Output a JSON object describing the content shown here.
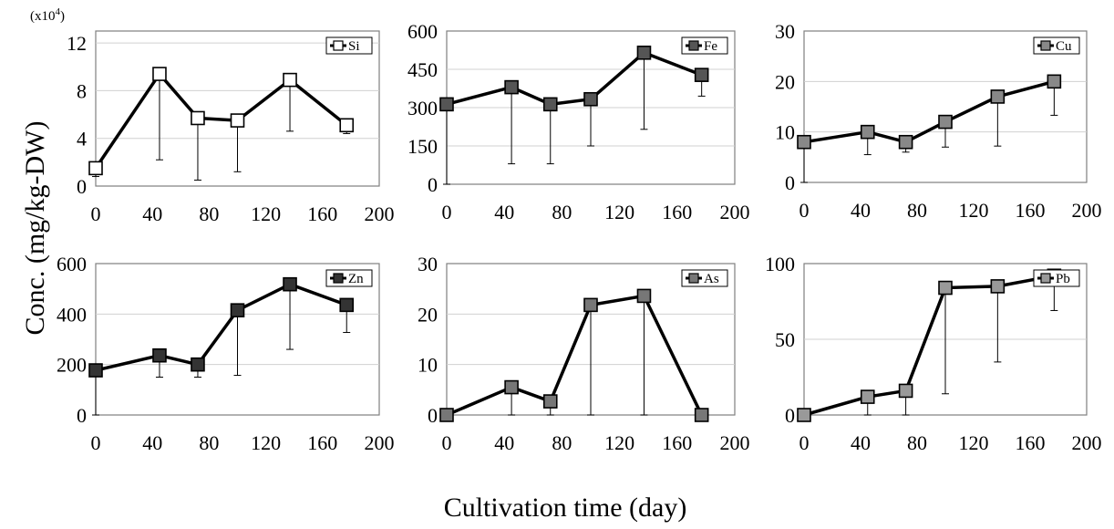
{
  "figure": {
    "ylabel": "Conc. (mg/kg-DW)",
    "xlabel": "Cultivation time (day)"
  },
  "chart_data": [
    {
      "type": "line",
      "legend": "Si",
      "marker_fill": "#ffffff",
      "y_multiplier_label": "(x10",
      "y_multiplier_exp": "4",
      "y_multiplier_close": ")",
      "x": [
        0,
        45,
        72,
        100,
        137,
        177
      ],
      "values": [
        1.5,
        9.4,
        5.7,
        5.5,
        8.9,
        5.1
      ],
      "err_low": [
        0.7,
        7.2,
        5.2,
        4.3,
        4.3,
        0.7
      ],
      "xlim": [
        0,
        200
      ],
      "xticks": [
        0,
        40,
        80,
        120,
        160,
        200
      ],
      "ylim": [
        0,
        13
      ],
      "yticks": [
        0,
        4,
        8,
        12
      ]
    },
    {
      "type": "line",
      "legend": "Fe",
      "marker_fill": "#555555",
      "x": [
        0,
        45,
        72,
        100,
        137,
        177
      ],
      "values": [
        313,
        380,
        313,
        333,
        515,
        428
      ],
      "err_low": [
        313,
        300,
        233,
        183,
        300,
        83
      ],
      "xlim": [
        0,
        200
      ],
      "xticks": [
        0,
        40,
        80,
        120,
        160,
        200
      ],
      "ylim": [
        0,
        600
      ],
      "yticks": [
        0,
        150,
        300,
        450,
        600
      ]
    },
    {
      "type": "line",
      "legend": "Cu",
      "marker_fill": "#888888",
      "x": [
        0,
        45,
        72,
        100,
        137,
        177
      ],
      "values": [
        8,
        10,
        8,
        12,
        17,
        20
      ],
      "err_low": [
        8,
        4.5,
        2,
        5,
        9.8,
        6.7
      ],
      "xlim": [
        0,
        200
      ],
      "xticks": [
        0,
        40,
        80,
        120,
        160,
        200
      ],
      "ylim": [
        0,
        30
      ],
      "yticks": [
        0,
        10,
        20,
        30
      ]
    },
    {
      "type": "line",
      "legend": "Zn",
      "marker_fill": "#333333",
      "x": [
        0,
        45,
        72,
        100,
        137,
        177
      ],
      "values": [
        177,
        236,
        200,
        415,
        518,
        436
      ],
      "err_low": [
        177,
        86,
        50,
        258,
        258,
        109
      ],
      "xlim": [
        0,
        200
      ],
      "xticks": [
        0,
        40,
        80,
        120,
        160,
        200
      ],
      "ylim": [
        0,
        600
      ],
      "yticks": [
        0,
        200,
        400,
        600
      ]
    },
    {
      "type": "line",
      "legend": "As",
      "marker_fill": "#777777",
      "x": [
        0,
        45,
        72,
        100,
        137,
        177
      ],
      "values": [
        0,
        5.5,
        2.7,
        21.8,
        23.6,
        0
      ],
      "err_low": [
        0,
        5.5,
        2.7,
        21.8,
        23.6,
        0
      ],
      "xlim": [
        0,
        200
      ],
      "xticks": [
        0,
        40,
        80,
        120,
        160,
        200
      ],
      "ylim": [
        0,
        30
      ],
      "yticks": [
        0,
        10,
        20,
        30
      ]
    },
    {
      "type": "line",
      "legend": "Pb",
      "marker_fill": "#999999",
      "x": [
        0,
        45,
        72,
        100,
        137,
        177
      ],
      "values": [
        0,
        12,
        16,
        84,
        85,
        92
      ],
      "err_low": [
        0,
        12,
        16,
        70,
        50,
        23
      ],
      "xlim": [
        0,
        200
      ],
      "xticks": [
        0,
        40,
        80,
        120,
        160,
        200
      ],
      "ylim": [
        0,
        100
      ],
      "yticks": [
        0,
        50,
        100
      ]
    }
  ]
}
